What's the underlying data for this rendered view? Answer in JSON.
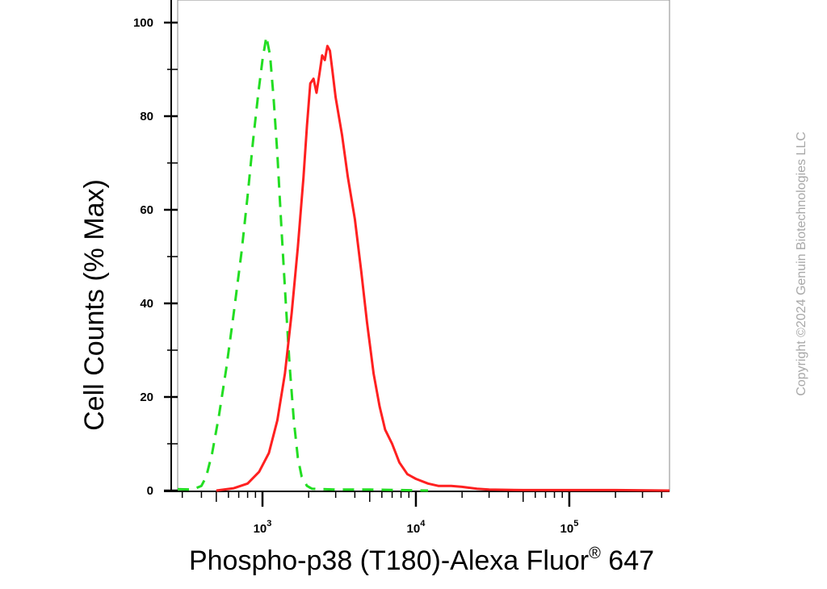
{
  "chart_data": {
    "type": "line",
    "xlabel": "Phospho-p38 (T180)-Alexa Fluor",
    "xlabel_superscript": "®",
    "xlabel_suffix": " 647",
    "ylabel": "Cell Counts (% Max)",
    "x_scale": "log",
    "xlim": [
      280,
      450000
    ],
    "ylim": [
      0,
      105
    ],
    "y_ticks": [
      0,
      20,
      40,
      60,
      80,
      100
    ],
    "x_tick_labels": [
      {
        "value": 1000,
        "base": "10",
        "exp": "3"
      },
      {
        "value": 10000,
        "base": "10",
        "exp": "4"
      },
      {
        "value": 100000,
        "base": "10",
        "exp": "5"
      }
    ],
    "grid": false,
    "series": [
      {
        "color": "#22dd22",
        "style": "dashed",
        "points": [
          [
            280,
            0.3
          ],
          [
            350,
            0.2
          ],
          [
            400,
            1
          ],
          [
            430,
            3
          ],
          [
            470,
            8
          ],
          [
            520,
            16
          ],
          [
            580,
            26
          ],
          [
            650,
            38
          ],
          [
            730,
            51
          ],
          [
            800,
            63
          ],
          [
            870,
            75
          ],
          [
            940,
            85
          ],
          [
            1000,
            92
          ],
          [
            1060,
            97
          ],
          [
            1120,
            93
          ],
          [
            1180,
            84
          ],
          [
            1250,
            72
          ],
          [
            1330,
            56
          ],
          [
            1420,
            40
          ],
          [
            1500,
            27
          ],
          [
            1600,
            15
          ],
          [
            1700,
            7
          ],
          [
            1800,
            3
          ],
          [
            1950,
            1
          ],
          [
            2100,
            0.4
          ],
          [
            3000,
            0.2
          ],
          [
            5000,
            0.2
          ],
          [
            8000,
            0.1
          ],
          [
            12000,
            0
          ]
        ]
      },
      {
        "color": "#ff2020",
        "style": "solid",
        "points": [
          [
            500,
            0
          ],
          [
            650,
            0.5
          ],
          [
            800,
            1.5
          ],
          [
            950,
            4
          ],
          [
            1100,
            8
          ],
          [
            1250,
            15
          ],
          [
            1400,
            25
          ],
          [
            1550,
            38
          ],
          [
            1700,
            52
          ],
          [
            1850,
            67
          ],
          [
            1950,
            78
          ],
          [
            2050,
            87
          ],
          [
            2150,
            88
          ],
          [
            2250,
            85
          ],
          [
            2350,
            89
          ],
          [
            2450,
            93
          ],
          [
            2550,
            92
          ],
          [
            2650,
            95
          ],
          [
            2750,
            94
          ],
          [
            2850,
            90
          ],
          [
            3000,
            84
          ],
          [
            3300,
            76
          ],
          [
            3600,
            67
          ],
          [
            4000,
            58
          ],
          [
            4400,
            47
          ],
          [
            4800,
            36
          ],
          [
            5300,
            25
          ],
          [
            5800,
            18
          ],
          [
            6300,
            13
          ],
          [
            7000,
            10
          ],
          [
            7800,
            6
          ],
          [
            8800,
            3.5
          ],
          [
            10000,
            2.5
          ],
          [
            12000,
            1.5
          ],
          [
            14000,
            1
          ],
          [
            17000,
            1
          ],
          [
            20000,
            0.8
          ],
          [
            25000,
            0.4
          ],
          [
            30000,
            0.2
          ],
          [
            50000,
            0.1
          ],
          [
            100000,
            0.1
          ],
          [
            200000,
            0.1
          ],
          [
            450000,
            0
          ]
        ]
      }
    ]
  },
  "copyright": "Copyright ©2024 Genuin Biotechnologies LLC"
}
